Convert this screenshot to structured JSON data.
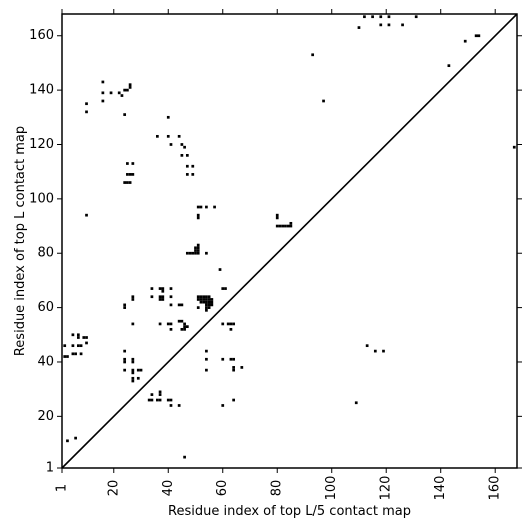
{
  "chart_data": {
    "type": "heatmap",
    "title": "",
    "xlabel": "Residue index of top L/5 contact map",
    "ylabel": "Residue index of top L contact map",
    "xlim": [
      1,
      168
    ],
    "ylim": [
      1,
      168
    ],
    "x_ticks": [
      1,
      20,
      40,
      60,
      80,
      100,
      120,
      140,
      160
    ],
    "y_ticks": [
      1,
      20,
      40,
      60,
      80,
      100,
      120,
      140,
      160
    ],
    "grid": false,
    "colors": {
      "contact": "#000000",
      "diagonal": "#000000",
      "background": "#ffffff"
    },
    "diagonal": [
      [
        1,
        1
      ],
      [
        168,
        168
      ]
    ],
    "upper_triangle_contacts": [
      [
        110,
        163
      ],
      [
        112,
        167
      ],
      [
        115,
        167
      ],
      [
        118,
        167
      ],
      [
        118,
        164
      ],
      [
        121,
        167
      ],
      [
        121,
        164
      ],
      [
        126,
        164
      ],
      [
        131,
        167
      ],
      [
        143,
        149
      ],
      [
        149,
        158
      ],
      [
        153,
        160
      ],
      [
        154,
        160
      ],
      [
        93,
        153
      ],
      [
        97,
        136
      ],
      [
        167,
        119
      ]
    ],
    "lower_triangle_contacts": [
      [
        3,
        11
      ],
      [
        6,
        12
      ],
      [
        46,
        5
      ],
      [
        109,
        25
      ],
      [
        113,
        46
      ],
      [
        116,
        44
      ],
      [
        119,
        44
      ],
      [
        2,
        42
      ],
      [
        3,
        42
      ],
      [
        5,
        43
      ],
      [
        6,
        43
      ],
      [
        8,
        43
      ],
      [
        2,
        46
      ],
      [
        5,
        46
      ],
      [
        7,
        46
      ],
      [
        8,
        46
      ],
      [
        10,
        47
      ],
      [
        5,
        50
      ],
      [
        7,
        50
      ],
      [
        7,
        49
      ],
      [
        9,
        49
      ],
      [
        10,
        49
      ],
      [
        10,
        94
      ],
      [
        16,
        143
      ],
      [
        16,
        139
      ],
      [
        16,
        136
      ],
      [
        19,
        139
      ],
      [
        22,
        139
      ],
      [
        23,
        138
      ],
      [
        24,
        140
      ],
      [
        25,
        140
      ],
      [
        26,
        141
      ],
      [
        26,
        142
      ],
      [
        10,
        135
      ],
      [
        10,
        132
      ],
      [
        24,
        131
      ],
      [
        24,
        106
      ],
      [
        25,
        106
      ],
      [
        26,
        106
      ],
      [
        25,
        109
      ],
      [
        26,
        109
      ],
      [
        27,
        109
      ],
      [
        25,
        113
      ],
      [
        27,
        113
      ],
      [
        36,
        123
      ],
      [
        40,
        123
      ],
      [
        40,
        130
      ],
      [
        41,
        120
      ],
      [
        44,
        123
      ],
      [
        45,
        120
      ],
      [
        46,
        119
      ],
      [
        45,
        116
      ],
      [
        47,
        116
      ],
      [
        47,
        112
      ],
      [
        49,
        112
      ],
      [
        47,
        109
      ],
      [
        49,
        109
      ],
      [
        24,
        61
      ],
      [
        24,
        60
      ],
      [
        27,
        64
      ],
      [
        27,
        63
      ],
      [
        27,
        54
      ],
      [
        24,
        44
      ],
      [
        24,
        41
      ],
      [
        24,
        40
      ],
      [
        27,
        41
      ],
      [
        27,
        40
      ],
      [
        24,
        37
      ],
      [
        27,
        37
      ],
      [
        27,
        36
      ],
      [
        29,
        37
      ],
      [
        30,
        37
      ],
      [
        27,
        34
      ],
      [
        27,
        33
      ],
      [
        29,
        34
      ],
      [
        34,
        28
      ],
      [
        33,
        26
      ],
      [
        34,
        26
      ],
      [
        36,
        26
      ],
      [
        37,
        26
      ],
      [
        37,
        29
      ],
      [
        37,
        28
      ],
      [
        40,
        26
      ],
      [
        41,
        26
      ],
      [
        41,
        24
      ],
      [
        44,
        24
      ],
      [
        34,
        67
      ],
      [
        34,
        64
      ],
      [
        37,
        67
      ],
      [
        38,
        67
      ],
      [
        37,
        64
      ],
      [
        38,
        64
      ],
      [
        37,
        63
      ],
      [
        38,
        63
      ],
      [
        38,
        66
      ],
      [
        41,
        67
      ],
      [
        41,
        64
      ],
      [
        41,
        61
      ],
      [
        44,
        61
      ],
      [
        45,
        61
      ],
      [
        37,
        54
      ],
      [
        40,
        54
      ],
      [
        41,
        54
      ],
      [
        41,
        52
      ],
      [
        44,
        55
      ],
      [
        45,
        55
      ],
      [
        46,
        54
      ],
      [
        45,
        52
      ],
      [
        46,
        53
      ],
      [
        47,
        53
      ],
      [
        46,
        52
      ],
      [
        47,
        80
      ],
      [
        48,
        80
      ],
      [
        49,
        80
      ],
      [
        50,
        80
      ],
      [
        51,
        80
      ],
      [
        50,
        81
      ],
      [
        51,
        81
      ],
      [
        50,
        82
      ],
      [
        51,
        82
      ],
      [
        51,
        83
      ],
      [
        51,
        94
      ],
      [
        51,
        93
      ],
      [
        51,
        97
      ],
      [
        52,
        97
      ],
      [
        54,
        97
      ],
      [
        57,
        97
      ],
      [
        54,
        80
      ],
      [
        59,
        74
      ],
      [
        51,
        64
      ],
      [
        52,
        64
      ],
      [
        53,
        64
      ],
      [
        54,
        64
      ],
      [
        55,
        64
      ],
      [
        51,
        63
      ],
      [
        52,
        63
      ],
      [
        53,
        63
      ],
      [
        54,
        63
      ],
      [
        55,
        63
      ],
      [
        56,
        63
      ],
      [
        52,
        62
      ],
      [
        53,
        62
      ],
      [
        54,
        62
      ],
      [
        55,
        62
      ],
      [
        56,
        62
      ],
      [
        54,
        61
      ],
      [
        55,
        61
      ],
      [
        56,
        61
      ],
      [
        54,
        60
      ],
      [
        55,
        60
      ],
      [
        54,
        59
      ],
      [
        51,
        60
      ],
      [
        60,
        67
      ],
      [
        61,
        67
      ],
      [
        60,
        54
      ],
      [
        62,
        54
      ],
      [
        63,
        54
      ],
      [
        64,
        54
      ],
      [
        63,
        52
      ],
      [
        60,
        41
      ],
      [
        63,
        41
      ],
      [
        64,
        41
      ],
      [
        64,
        38
      ],
      [
        64,
        37
      ],
      [
        67,
        38
      ],
      [
        54,
        44
      ],
      [
        54,
        41
      ],
      [
        54,
        37
      ],
      [
        60,
        24
      ],
      [
        64,
        26
      ],
      [
        80,
        94
      ],
      [
        80,
        93
      ],
      [
        80,
        90
      ],
      [
        81,
        90
      ],
      [
        82,
        90
      ],
      [
        83,
        90
      ],
      [
        84,
        90
      ],
      [
        85,
        90
      ],
      [
        85,
        91
      ]
    ]
  }
}
